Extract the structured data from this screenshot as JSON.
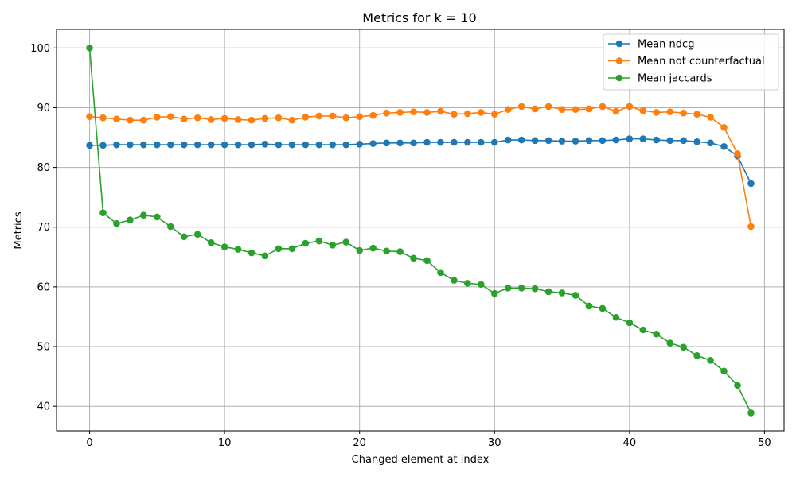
{
  "chart_data": {
    "type": "line",
    "title": "Metrics for k = 10",
    "xlabel": "Changed element at index",
    "ylabel": "Metrics",
    "xlim": [
      -2.45,
      51.45
    ],
    "ylim": [
      35.9,
      103.1
    ],
    "xticks": [
      0,
      10,
      20,
      30,
      40,
      50
    ],
    "yticks": [
      40,
      50,
      60,
      70,
      80,
      90,
      100
    ],
    "grid": true,
    "legend_position": "top-right",
    "x": [
      0,
      1,
      2,
      3,
      4,
      5,
      6,
      7,
      8,
      9,
      10,
      11,
      12,
      13,
      14,
      15,
      16,
      17,
      18,
      19,
      20,
      21,
      22,
      23,
      24,
      25,
      26,
      27,
      28,
      29,
      30,
      31,
      32,
      33,
      34,
      35,
      36,
      37,
      38,
      39,
      40,
      41,
      42,
      43,
      44,
      45,
      46,
      47,
      48,
      49
    ],
    "series": [
      {
        "name": "Mean ndcg",
        "color": "#1f77b4",
        "values": [
          83.7,
          83.7,
          83.8,
          83.8,
          83.8,
          83.8,
          83.8,
          83.8,
          83.8,
          83.8,
          83.8,
          83.8,
          83.8,
          83.9,
          83.8,
          83.8,
          83.8,
          83.8,
          83.8,
          83.8,
          83.9,
          84.0,
          84.1,
          84.1,
          84.1,
          84.2,
          84.2,
          84.2,
          84.2,
          84.2,
          84.2,
          84.6,
          84.6,
          84.5,
          84.5,
          84.4,
          84.4,
          84.5,
          84.5,
          84.6,
          84.8,
          84.8,
          84.6,
          84.5,
          84.5,
          84.3,
          84.1,
          83.5,
          81.9,
          77.3
        ]
      },
      {
        "name": "Mean not counterfactual",
        "color": "#ff7f0e",
        "values": [
          88.5,
          88.3,
          88.1,
          87.9,
          87.9,
          88.4,
          88.5,
          88.1,
          88.3,
          88.0,
          88.2,
          88.0,
          87.9,
          88.2,
          88.3,
          87.9,
          88.4,
          88.6,
          88.6,
          88.3,
          88.5,
          88.7,
          89.1,
          89.2,
          89.3,
          89.2,
          89.4,
          88.9,
          89.0,
          89.2,
          88.9,
          89.7,
          90.2,
          89.8,
          90.2,
          89.7,
          89.7,
          89.8,
          90.2,
          89.4,
          90.2,
          89.5,
          89.2,
          89.3,
          89.1,
          88.9,
          88.4,
          86.7,
          82.3,
          70.1
        ]
      },
      {
        "name": "Mean jaccards",
        "color": "#2ca02c",
        "values": [
          100.0,
          72.4,
          70.6,
          71.2,
          72.0,
          71.7,
          70.1,
          68.4,
          68.8,
          67.4,
          66.7,
          66.3,
          65.7,
          65.2,
          66.4,
          66.4,
          67.3,
          67.7,
          67.0,
          67.5,
          66.1,
          66.5,
          66.0,
          65.9,
          64.8,
          64.4,
          62.4,
          61.1,
          60.6,
          60.4,
          58.9,
          59.8,
          59.8,
          59.7,
          59.2,
          59.0,
          58.6,
          56.8,
          56.4,
          54.9,
          54.0,
          52.8,
          52.1,
          50.6,
          49.9,
          48.5,
          47.7,
          45.9,
          43.5,
          38.9
        ]
      }
    ]
  }
}
